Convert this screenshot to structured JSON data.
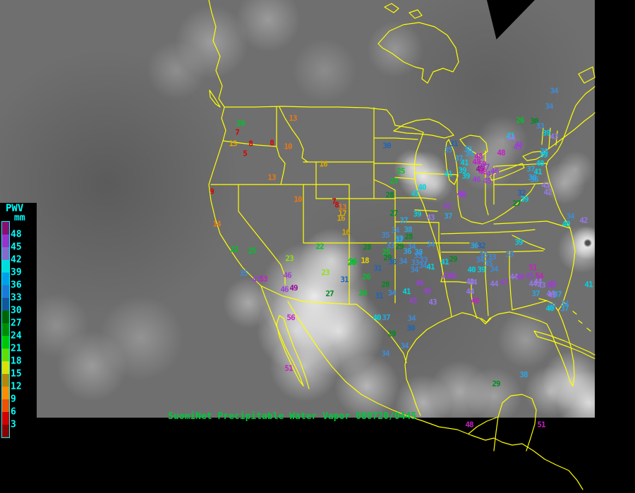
{
  "legend": {
    "title": "PWV",
    "unit": "mm",
    "text_color": "#00FFFF",
    "labels": [
      "48",
      "45",
      "42",
      "39",
      "36",
      "33",
      "30",
      "27",
      "24",
      "21",
      "18",
      "15",
      "12",
      "9",
      "6",
      "3"
    ],
    "box_colors": [
      "#8A1070",
      "#9932CC",
      "#8968CD",
      "#00DCDC",
      "#009FE8",
      "#1E78D7",
      "#17549E",
      "#006400",
      "#008C00",
      "#00C800",
      "#64DC00",
      "#E0E000",
      "#B8860B",
      "#FF8C00",
      "#F05000",
      "#D40000",
      "#8C0000"
    ]
  },
  "caption": {
    "text": "SuomiNet Precipitable Water Vapor 080720/0445",
    "color": "#00C83C"
  },
  "map": {
    "outline_color": "#FFFF00",
    "background": "#6F6F6F"
  },
  "colors": {
    "red": "#D80000",
    "orange": "#E87816",
    "gold": "#D8A800",
    "yellow": "#E8D400",
    "ygreen": "#90E010",
    "green": "#00C228",
    "dgreen": "#008A20",
    "dblue": "#1E64B6",
    "blue": "#3E8CD8",
    "lblue": "#2CA6E4",
    "cyan": "#00D4E4",
    "lpurple": "#9678EC",
    "purple": "#9B3FD4",
    "magenta": "#C61EC6",
    "dmagenta": "#99089B"
  },
  "stations": [
    [
      "26",
      341,
      175,
      "green"
    ],
    [
      "7",
      336,
      188,
      "red"
    ],
    [
      "15",
      330,
      204,
      "gold"
    ],
    [
      "8",
      355,
      204,
      "red"
    ],
    [
      "8",
      385,
      203,
      "red"
    ],
    [
      "5",
      347,
      218,
      "red"
    ],
    [
      "13",
      415,
      168,
      "orange"
    ],
    [
      "10",
      408,
      208,
      "orange"
    ],
    [
      "16",
      458,
      233,
      "gold"
    ],
    [
      "13",
      385,
      252,
      "orange"
    ],
    [
      "9",
      300,
      272,
      "red"
    ],
    [
      "14",
      307,
      318,
      "orange"
    ],
    [
      "22",
      332,
      354,
      "green"
    ],
    [
      "25",
      357,
      356,
      "green"
    ],
    [
      "35",
      345,
      388,
      "blue"
    ],
    [
      "47",
      363,
      397,
      "purple"
    ],
    [
      "53",
      373,
      396,
      "magenta"
    ],
    [
      "23",
      410,
      367,
      "ygreen"
    ],
    [
      "46",
      407,
      391,
      "purple"
    ],
    [
      "46",
      403,
      411,
      "purple"
    ],
    [
      "49",
      416,
      409,
      "dmagenta"
    ],
    [
      "56",
      412,
      451,
      "magenta"
    ],
    [
      "51",
      409,
      523,
      "magenta"
    ],
    [
      "22",
      453,
      350,
      "green"
    ],
    [
      "23",
      461,
      387,
      "ygreen"
    ],
    [
      "26",
      498,
      373,
      "green"
    ],
    [
      "31",
      488,
      397,
      "dblue"
    ],
    [
      "27",
      467,
      417,
      "dgreen"
    ],
    [
      "10",
      422,
      283,
      "orange"
    ],
    [
      "7",
      473,
      286,
      "red"
    ],
    [
      "8",
      477,
      291,
      "red"
    ],
    [
      "13",
      485,
      294,
      "orange"
    ],
    [
      "17",
      485,
      303,
      "gold"
    ],
    [
      "16",
      483,
      310,
      "gold"
    ],
    [
      "16",
      490,
      330,
      "gold"
    ],
    [
      "30",
      548,
      207,
      "dblue"
    ],
    [
      "25",
      568,
      243,
      "green"
    ],
    [
      "23",
      558,
      257,
      "green"
    ],
    [
      "28",
      552,
      277,
      "dgreen"
    ],
    [
      "41",
      588,
      275,
      "cyan"
    ],
    [
      "40",
      598,
      266,
      "cyan"
    ],
    [
      "27",
      558,
      303,
      "dgreen"
    ],
    [
      "39",
      591,
      304,
      "cyan"
    ],
    [
      "43",
      610,
      309,
      "lpurple"
    ],
    [
      "45",
      633,
      293,
      "purple"
    ],
    [
      "46",
      655,
      277,
      "purple"
    ],
    [
      "37",
      572,
      313,
      "lblue"
    ],
    [
      "34",
      560,
      327,
      "blue"
    ],
    [
      "38",
      578,
      326,
      "lblue"
    ],
    [
      "35",
      546,
      334,
      "blue"
    ],
    [
      "37",
      565,
      339,
      "lblue"
    ],
    [
      "28",
      579,
      336,
      "dgreen"
    ],
    [
      "33",
      553,
      349,
      "blue"
    ],
    [
      "29",
      566,
      350,
      "dgreen"
    ],
    [
      "34",
      583,
      350,
      "blue"
    ],
    [
      "25",
      547,
      358,
      "green"
    ],
    [
      "36",
      577,
      357,
      "lblue"
    ],
    [
      "38",
      593,
      358,
      "lblue"
    ],
    [
      "29",
      549,
      366,
      "dgreen"
    ],
    [
      "34",
      571,
      371,
      "blue"
    ],
    [
      "30",
      556,
      372,
      "dblue"
    ],
    [
      "33",
      600,
      369,
      "blue"
    ],
    [
      "34",
      610,
      347,
      "blue"
    ],
    [
      "41",
      630,
      372,
      "cyan"
    ],
    [
      "35",
      592,
      363,
      "blue"
    ],
    [
      "28",
      520,
      351,
      "dgreen"
    ],
    [
      "26",
      500,
      371,
      "green"
    ],
    [
      "18",
      517,
      370,
      "yellow"
    ],
    [
      "31",
      535,
      381,
      "dblue"
    ],
    [
      "33",
      588,
      373,
      "blue"
    ],
    [
      "34",
      587,
      383,
      "blue"
    ],
    [
      "34",
      599,
      377,
      "blue"
    ],
    [
      "41",
      610,
      379,
      "cyan"
    ],
    [
      "28",
      546,
      404,
      "dgreen"
    ],
    [
      "26",
      519,
      393,
      "green"
    ],
    [
      "26",
      514,
      416,
      "green"
    ],
    [
      "31",
      537,
      420,
      "dblue"
    ],
    [
      "34",
      555,
      416,
      "blue"
    ],
    [
      "41",
      576,
      414,
      "cyan"
    ],
    [
      "46",
      594,
      402,
      "purple"
    ],
    [
      "46",
      605,
      413,
      "purple"
    ],
    [
      "45",
      585,
      427,
      "purple"
    ],
    [
      "43",
      613,
      429,
      "lpurple"
    ],
    [
      "47",
      632,
      392,
      "purple"
    ],
    [
      "40",
      534,
      451,
      "cyan"
    ],
    [
      "37",
      547,
      451,
      "lblue"
    ],
    [
      "34",
      583,
      452,
      "blue"
    ],
    [
      "30",
      582,
      466,
      "dblue"
    ],
    [
      "29",
      555,
      474,
      "dgreen"
    ],
    [
      "34",
      573,
      491,
      "blue"
    ],
    [
      "34",
      546,
      502,
      "blue"
    ],
    [
      "37",
      566,
      341,
      "lblue"
    ],
    [
      "29",
      642,
      368,
      "dgreen"
    ],
    [
      "46",
      641,
      392,
      "purple"
    ],
    [
      "42",
      666,
      400,
      "lpurple"
    ],
    [
      "44",
      670,
      401,
      "lpurple"
    ],
    [
      "36",
      672,
      349,
      "lblue"
    ],
    [
      "32",
      682,
      349,
      "dblue"
    ],
    [
      "35",
      685,
      362,
      "blue"
    ],
    [
      "34",
      680,
      369,
      "blue"
    ],
    [
      "33",
      697,
      365,
      "blue"
    ],
    [
      "35",
      692,
      374,
      "blue"
    ],
    [
      "40",
      668,
      383,
      "cyan"
    ],
    [
      "39",
      682,
      383,
      "cyan"
    ],
    [
      "34",
      700,
      382,
      "blue"
    ],
    [
      "33",
      722,
      361,
      "blue"
    ],
    [
      "39",
      735,
      344,
      "cyan"
    ],
    [
      "51",
      755,
      380,
      "magenta"
    ],
    [
      "44",
      728,
      393,
      "lpurple"
    ],
    [
      "46",
      737,
      393,
      "purple"
    ],
    [
      "45",
      750,
      392,
      "purple"
    ],
    [
      "54",
      764,
      392,
      "magenta"
    ],
    [
      "44",
      762,
      400,
      "lpurple"
    ],
    [
      "43",
      767,
      405,
      "lpurple"
    ],
    [
      "45",
      780,
      405,
      "purple"
    ],
    [
      "47",
      714,
      401,
      "purple"
    ],
    [
      "44",
      666,
      414,
      "lpurple"
    ],
    [
      "48",
      673,
      427,
      "magenta"
    ],
    [
      "44",
      700,
      403,
      "lpurple"
    ],
    [
      "44",
      755,
      403,
      "lpurple"
    ],
    [
      "45",
      783,
      403,
      "purple"
    ],
    [
      "37",
      759,
      417,
      "lblue"
    ],
    [
      "44",
      780,
      417,
      "lpurple"
    ],
    [
      "43",
      782,
      419,
      "lpurple"
    ],
    [
      "37",
      790,
      418,
      "lblue"
    ],
    [
      "34",
      800,
      431,
      "blue"
    ],
    [
      "35",
      782,
      435,
      "blue"
    ],
    [
      "40",
      779,
      438,
      "cyan"
    ],
    [
      "37",
      800,
      438,
      "lblue"
    ],
    [
      "38",
      742,
      532,
      "lblue"
    ],
    [
      "29",
      703,
      545,
      "dgreen"
    ],
    [
      "41",
      834,
      404,
      "cyan"
    ],
    [
      "31",
      643,
      204,
      "dblue"
    ],
    [
      "35",
      635,
      213,
      "blue"
    ],
    [
      "38",
      663,
      212,
      "lblue"
    ],
    [
      "36",
      665,
      218,
      "lblue"
    ],
    [
      "37",
      650,
      225,
      "lblue"
    ],
    [
      "41",
      658,
      231,
      "cyan"
    ],
    [
      "48",
      678,
      222,
      "magenta"
    ],
    [
      "39",
      655,
      242,
      "cyan"
    ],
    [
      "39",
      660,
      250,
      "cyan"
    ],
    [
      "48",
      675,
      230,
      "magenta"
    ],
    [
      "50",
      683,
      233,
      "magenta"
    ],
    [
      "49",
      680,
      240,
      "dmagenta"
    ],
    [
      "47",
      688,
      237,
      "purple"
    ],
    [
      "48",
      684,
      244,
      "magenta"
    ],
    [
      "46",
      675,
      255,
      "purple"
    ],
    [
      "45",
      690,
      257,
      "purple"
    ],
    [
      "47",
      695,
      247,
      "purple"
    ],
    [
      "41",
      635,
      247,
      "cyan"
    ],
    [
      "37",
      635,
      307,
      "lblue"
    ],
    [
      "46",
      653,
      275,
      "purple"
    ],
    [
      "32",
      739,
      274,
      "dblue"
    ],
    [
      "39",
      743,
      283,
      "cyan"
    ],
    [
      "27",
      732,
      289,
      "dgreen"
    ],
    [
      "41",
      723,
      193,
      "cyan"
    ],
    [
      "46",
      735,
      205,
      "purple"
    ],
    [
      "45",
      733,
      209,
      "purple"
    ],
    [
      "48",
      710,
      217,
      "magenta"
    ],
    [
      "44",
      724,
      196,
      "lpurple"
    ],
    [
      "26",
      737,
      171,
      "green"
    ],
    [
      "30",
      757,
      172,
      "dgreen"
    ],
    [
      "33",
      765,
      179,
      "blue"
    ],
    [
      "39",
      774,
      189,
      "cyan"
    ],
    [
      "43",
      785,
      194,
      "lpurple"
    ],
    [
      "38",
      771,
      215,
      "lblue"
    ],
    [
      "39",
      770,
      220,
      "cyan"
    ],
    [
      "40",
      765,
      232,
      "cyan"
    ],
    [
      "37",
      752,
      240,
      "lblue"
    ],
    [
      "41",
      762,
      244,
      "cyan"
    ],
    [
      "38",
      754,
      252,
      "lblue"
    ],
    [
      "36",
      757,
      255,
      "lblue"
    ],
    [
      "43",
      773,
      263,
      "lpurple"
    ],
    [
      "42",
      776,
      273,
      "lpurple"
    ],
    [
      "34",
      785,
      129,
      "blue"
    ],
    [
      "34",
      778,
      151,
      "blue"
    ],
    [
      "34",
      808,
      307,
      "blue"
    ],
    [
      "42",
      827,
      313,
      "lpurple"
    ],
    [
      "40",
      802,
      318,
      "cyan"
    ],
    [
      "46",
      701,
      243,
      "purple"
    ],
    [
      "48",
      665,
      603,
      "magenta"
    ],
    [
      "51",
      767,
      603,
      "magenta"
    ]
  ]
}
